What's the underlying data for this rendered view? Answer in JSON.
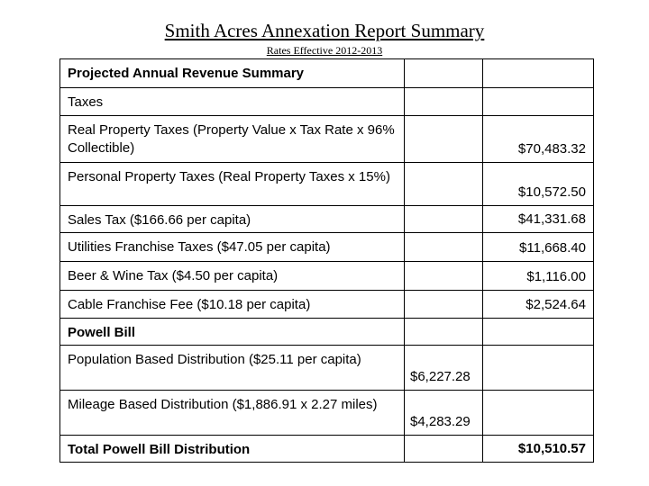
{
  "header": {
    "title": "Smith Acres Annexation Report Summary",
    "subtitle": "Rates Effective 2012-2013"
  },
  "table": {
    "rows": [
      {
        "label": "Projected Annual Revenue Summary",
        "bold": true
      },
      {
        "label": "Taxes"
      },
      {
        "label": "Real Property Taxes (Property Value x Tax Rate x 96% Collectible)",
        "total": "$70,483.32"
      },
      {
        "label": "Personal Property Taxes (Real Property Taxes x 15%)",
        "total": "$10,572.50"
      },
      {
        "label": "Sales Tax ($166.66 per capita)",
        "total": "$41,331.68"
      },
      {
        "label": "Utilities Franchise Taxes ($47.05 per capita)",
        "total": "$11,668.40"
      },
      {
        "label": "Beer & Wine Tax ($4.50 per capita)",
        "total": "$1,116.00"
      },
      {
        "label": "Cable Franchise Fee ($10.18 per capita)",
        "total": "$2,524.64"
      },
      {
        "label": "Powell Bill",
        "bold": true
      },
      {
        "label": "Population Based Distribution ($25.11 per capita)",
        "part": "$6,227.28"
      },
      {
        "label": "Mileage Based Distribution ($1,886.91 x 2.27 miles)",
        "part": "$4,283.29"
      },
      {
        "label": "Total Powell Bill Distribution",
        "bold": true,
        "total": "$10,510.57"
      }
    ]
  }
}
